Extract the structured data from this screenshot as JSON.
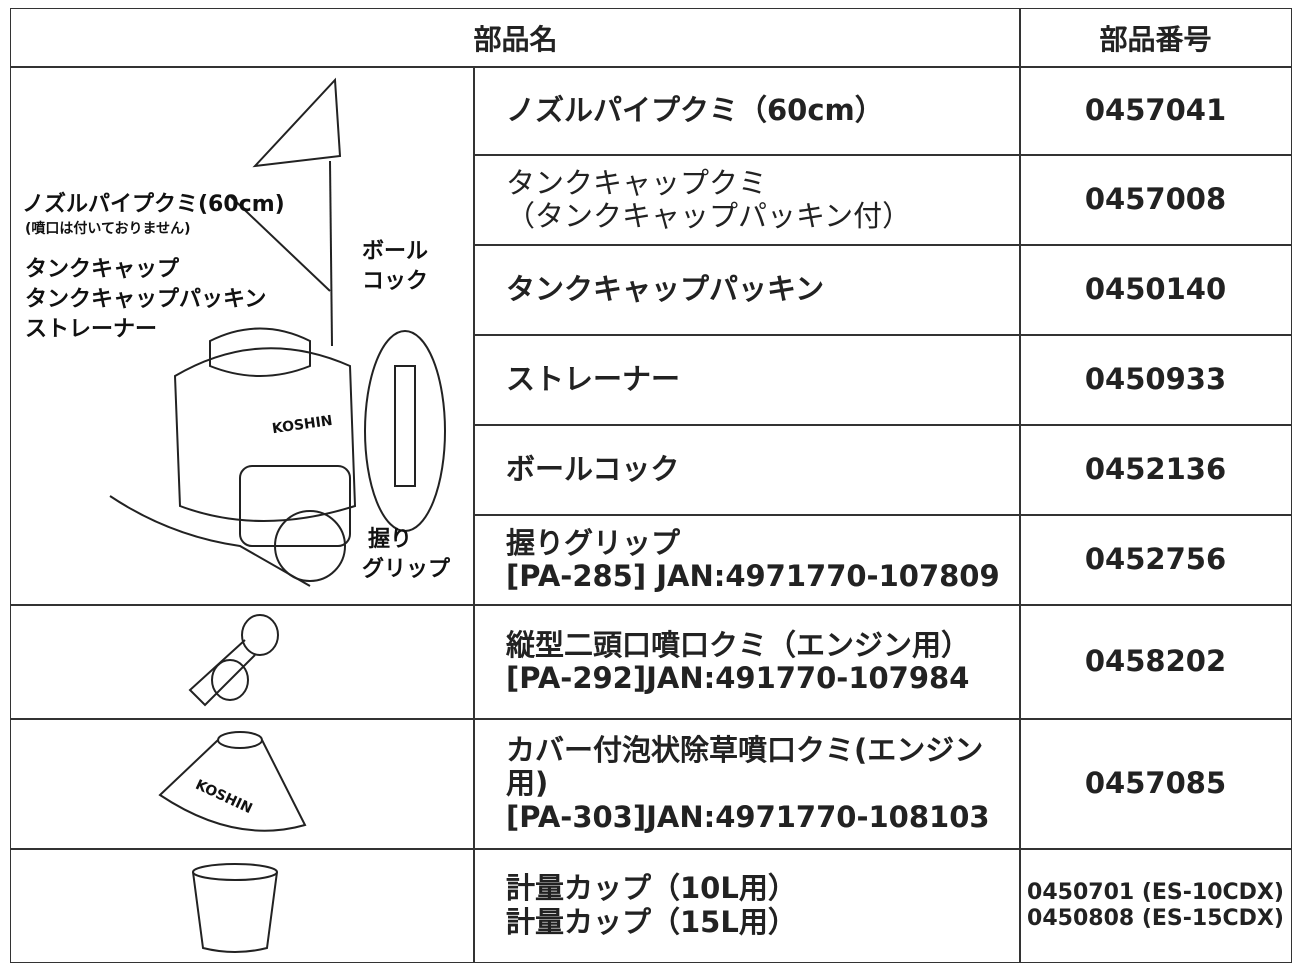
{
  "header": {
    "name": "部品名",
    "number": "部品番号"
  },
  "sprayer": {
    "nozzle": "ノズルパイプクミ(60cm)",
    "nozzle_note": "(噴口は付いておりません)",
    "cap": "タンクキャップ",
    "packing": "タンクキャップパッキン",
    "strainer": "ストレーナー",
    "cock": [
      "ボール",
      "コック"
    ],
    "grip": [
      "握り",
      "グリップ"
    ],
    "brand": "KOSHIN"
  },
  "cover_brand": "KOSHIN",
  "rows": [
    {
      "name": [
        "ノズルパイプクミ（60cm）"
      ],
      "number": [
        "0457041"
      ]
    },
    {
      "name": [
        "タンクキャップクミ",
        "（タンクキャップパッキン付）"
      ],
      "number": [
        "0457008"
      ]
    },
    {
      "name": [
        "タンクキャップパッキン"
      ],
      "number": [
        "0450140"
      ]
    },
    {
      "name": [
        "ストレーナー"
      ],
      "number": [
        "0450933"
      ]
    },
    {
      "name": [
        "ボールコック"
      ],
      "number": [
        "0452136"
      ]
    },
    {
      "name": [
        "握りグリップ",
        "[PA-285] JAN:4971770-107809"
      ],
      "number": [
        "0452756"
      ]
    },
    {
      "name": [
        "縦型二頭口噴口クミ（エンジン用）",
        "[PA-292]JAN:491770-107984"
      ],
      "number": [
        "0458202"
      ]
    },
    {
      "name": [
        "カバー付泡状除草噴口クミ(エンジン用)",
        "[PA-303]JAN:4971770-108103"
      ],
      "number": [
        "0457085"
      ]
    },
    {
      "name": [
        "計量カップ（10L用）",
        "計量カップ（15L用）"
      ],
      "number": [
        "0450701 (ES-10CDX)",
        "0450808 (ES-15CDX)"
      ]
    }
  ]
}
